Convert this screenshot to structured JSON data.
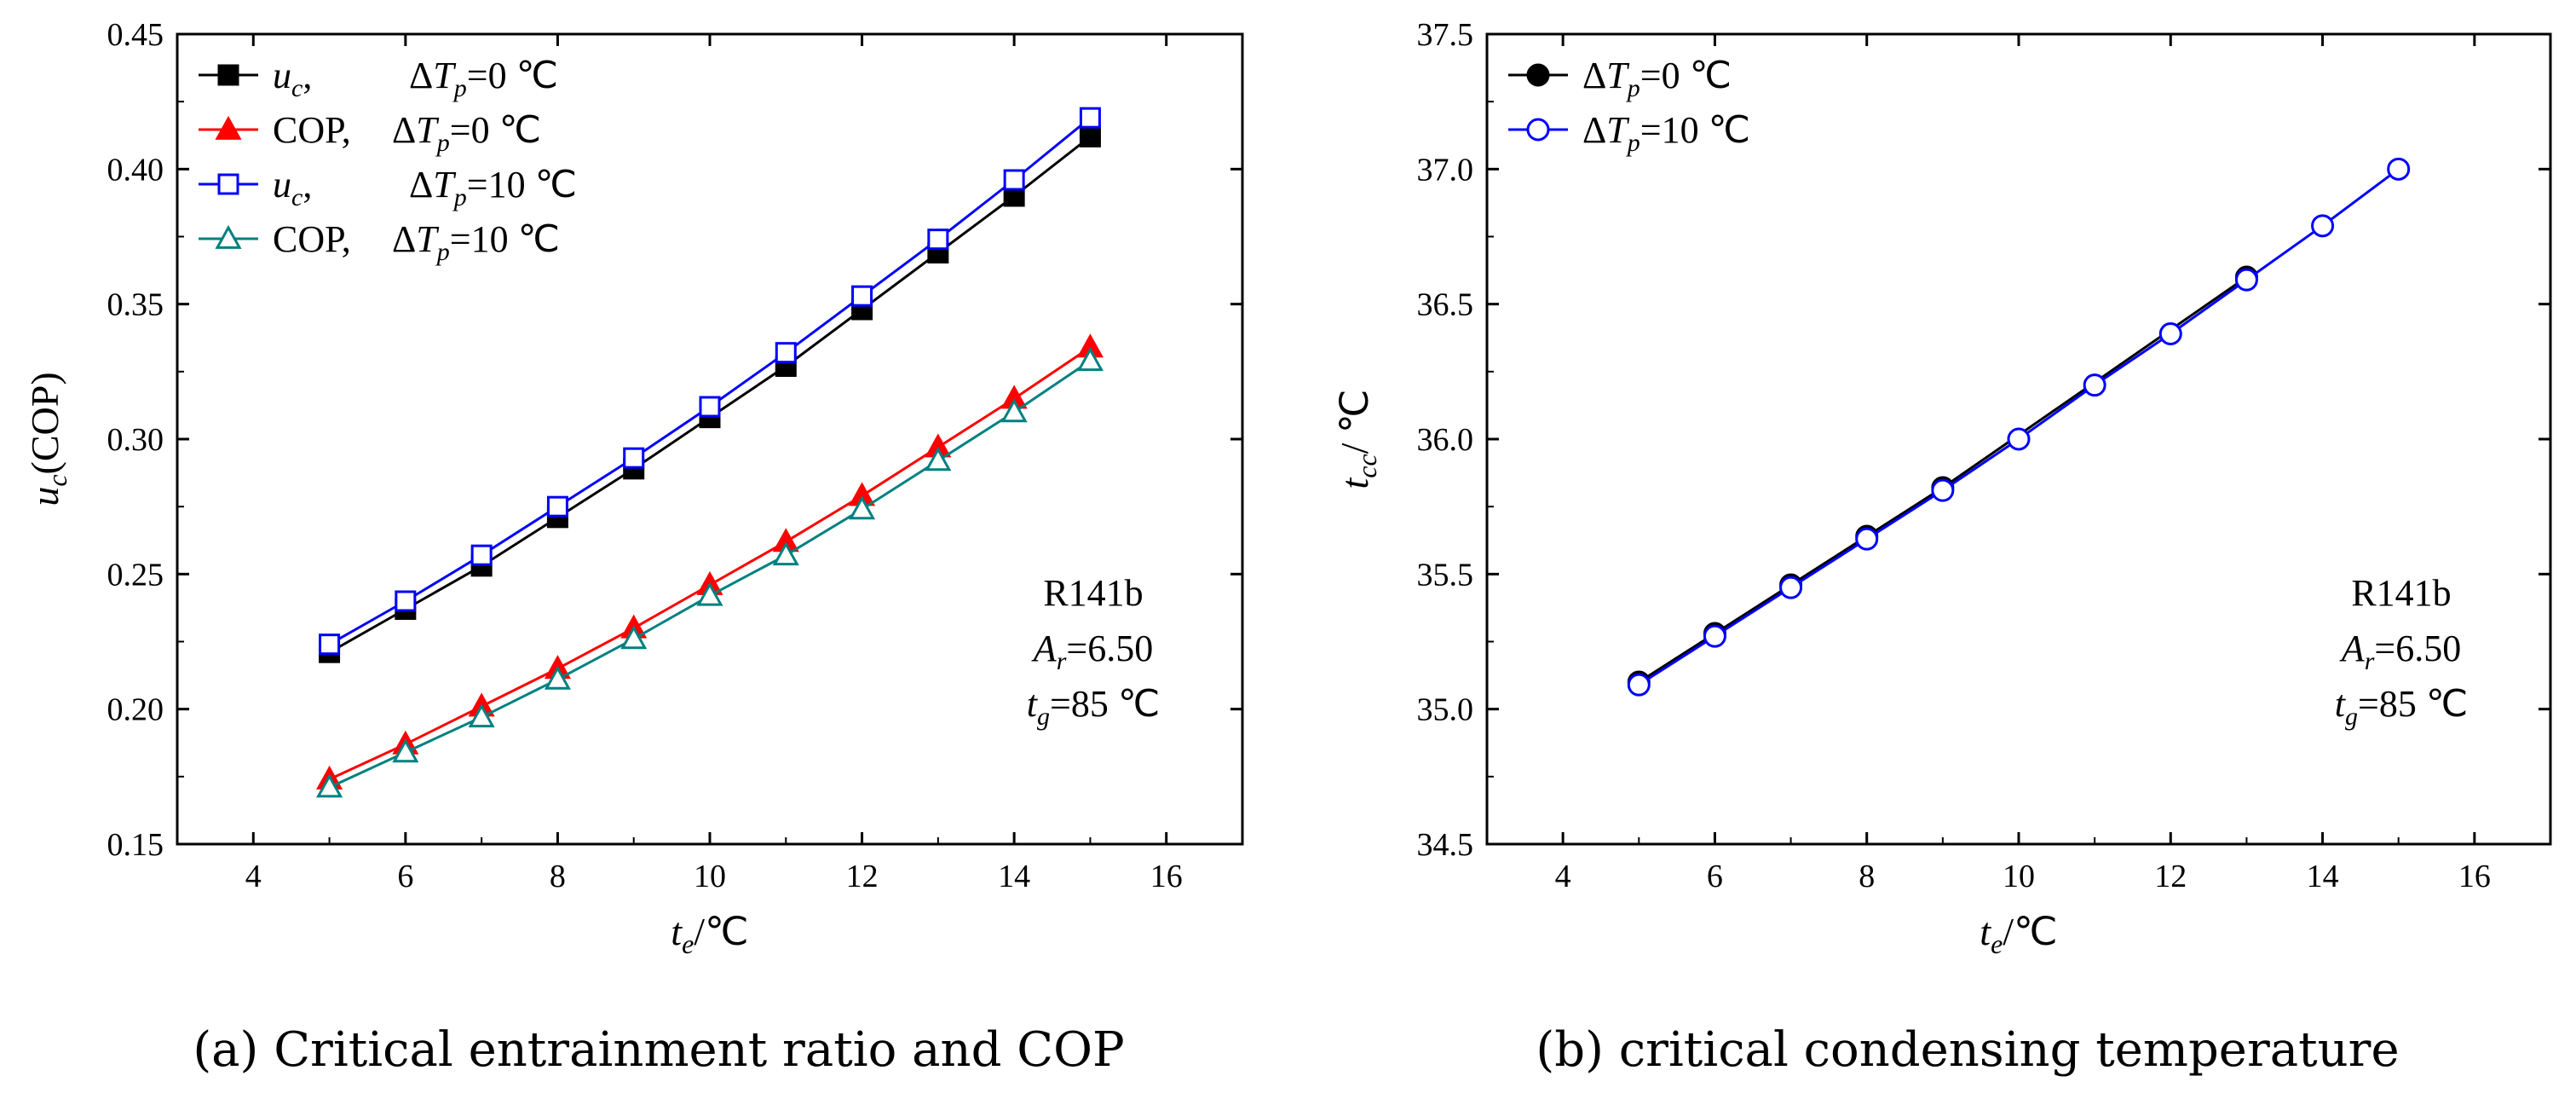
{
  "chart_data": [
    {
      "type": "line",
      "caption": "(a)  Critical entrainment ratio and COP",
      "xlabel": {
        "main": "t",
        "sub": "e",
        "unit": "/℃"
      },
      "ylabel": {
        "main": "u",
        "sub": "c",
        "rest": "(COP)"
      },
      "xlim": [
        3,
        17
      ],
      "ylim": [
        0.15,
        0.45
      ],
      "xticks": [
        "4",
        "6",
        "8",
        "10",
        "12",
        "14",
        "16"
      ],
      "yticks": [
        "0.15",
        "0.20",
        "0.25",
        "0.30",
        "0.35",
        "0.40",
        "0.45"
      ],
      "grid": false,
      "legend_position": "top-left",
      "annotation": {
        "l1": "R141b",
        "a_main": "A",
        "a_sub": "r",
        "a_val": "=6.50",
        "t_main": "t",
        "t_sub": "g",
        "t_val": "=85 ℃"
      },
      "x": [
        5,
        6,
        7,
        8,
        9,
        10,
        11,
        12,
        13,
        14,
        15
      ],
      "series": [
        {
          "legend_main": "u",
          "legend_sub": "c",
          "legend_rest": ",",
          "dt_main": "ΔT",
          "dt_sub": "p",
          "dt_val": "=0 ℃",
          "color": "#000000",
          "marker": "square-filled",
          "values": [
            0.221,
            0.237,
            0.253,
            0.271,
            0.289,
            0.308,
            0.327,
            0.348,
            0.369,
            0.39,
            0.412
          ]
        },
        {
          "legend_main": "COP,",
          "legend_sub": "",
          "legend_rest": "",
          "dt_main": "ΔT",
          "dt_sub": "p",
          "dt_val": "=0 ℃",
          "color": "#ff0000",
          "marker": "triangle-filled",
          "values": [
            0.174,
            0.187,
            0.201,
            0.215,
            0.23,
            0.246,
            0.262,
            0.279,
            0.297,
            0.315,
            0.334
          ]
        },
        {
          "legend_main": "u",
          "legend_sub": "c",
          "legend_rest": ",",
          "dt_main": "ΔT",
          "dt_sub": "p",
          "dt_val": "=10 ℃",
          "color": "#0000ff",
          "marker": "square-open",
          "values": [
            0.224,
            0.24,
            0.257,
            0.275,
            0.293,
            0.312,
            0.332,
            0.353,
            0.374,
            0.396,
            0.419
          ]
        },
        {
          "legend_main": "COP,",
          "legend_sub": "",
          "legend_rest": "",
          "dt_main": "ΔT",
          "dt_sub": "p",
          "dt_val": "=10 ℃",
          "color": "#008080",
          "marker": "triangle-open",
          "values": [
            0.171,
            0.184,
            0.197,
            0.211,
            0.226,
            0.242,
            0.257,
            0.274,
            0.292,
            0.31,
            0.329
          ]
        }
      ]
    },
    {
      "type": "line",
      "caption": "(b)  critical condensing temperature",
      "xlabel": {
        "main": "t",
        "sub": "e",
        "unit": "/℃"
      },
      "ylabel": {
        "main": "t",
        "sub": "cc",
        "rest": "/ ℃"
      },
      "xlim": [
        3,
        17
      ],
      "ylim": [
        34.5,
        37.5
      ],
      "xticks": [
        "4",
        "6",
        "8",
        "10",
        "12",
        "14",
        "16"
      ],
      "yticks": [
        "34.5",
        "35.0",
        "35.5",
        "36.0",
        "36.5",
        "37.0",
        "37.5"
      ],
      "grid": false,
      "legend_position": "top-left",
      "annotation": {
        "l1": "R141b",
        "a_main": "A",
        "a_sub": "r",
        "a_val": "=6.50",
        "t_main": "t",
        "t_sub": "g",
        "t_val": "=85 ℃"
      },
      "series": [
        {
          "dt_main": "ΔT",
          "dt_sub": "p",
          "dt_val": "=0 ℃",
          "color": "#000000",
          "marker": "circle-filled",
          "x": [
            5,
            6,
            7,
            8,
            9,
            13
          ],
          "values": [
            35.1,
            35.28,
            35.46,
            35.64,
            35.82,
            36.6
          ]
        },
        {
          "dt_main": "ΔT",
          "dt_sub": "p",
          "dt_val": "=10 ℃",
          "color": "#0000ff",
          "marker": "circle-open",
          "x": [
            5,
            6,
            7,
            8,
            9,
            10,
            11,
            12,
            13,
            14,
            15
          ],
          "values": [
            35.09,
            35.27,
            35.45,
            35.63,
            35.81,
            36.0,
            36.2,
            36.39,
            36.59,
            36.79,
            37.0
          ]
        }
      ]
    }
  ]
}
